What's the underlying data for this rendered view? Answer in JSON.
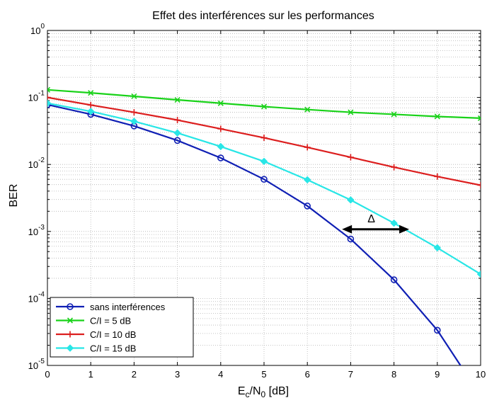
{
  "chart_data": {
    "type": "line",
    "title": "Effet des interférences sur les performances",
    "xlabel": {
      "main": "E",
      "sub1": "c",
      "mid": "/N",
      "sub2": "0",
      "tail": " [dB]"
    },
    "ylabel": "BER",
    "x": [
      0,
      1,
      2,
      3,
      4,
      5,
      6,
      7,
      8,
      9,
      10
    ],
    "xlim": [
      0,
      10
    ],
    "ylim": [
      1e-05,
      1
    ],
    "yscale": "log",
    "grid": true,
    "legend_position": "bottom-left",
    "x_ticks": [
      "0",
      "1",
      "2",
      "3",
      "4",
      "5",
      "6",
      "7",
      "8",
      "9",
      "10"
    ],
    "y_ticks": [
      {
        "base": "10",
        "exp": "0",
        "value": 1
      },
      {
        "base": "10",
        "exp": "-1",
        "value": 0.1
      },
      {
        "base": "10",
        "exp": "-2",
        "value": 0.01
      },
      {
        "base": "10",
        "exp": "-3",
        "value": 0.001
      },
      {
        "base": "10",
        "exp": "-4",
        "value": 0.0001
      },
      {
        "base": "10",
        "exp": "-5",
        "value": 1e-05
      }
    ],
    "series": [
      {
        "name": "sans interférences",
        "color": "#0f1fb4",
        "marker": "circle",
        "values": [
          0.078,
          0.056,
          0.0375,
          0.0228,
          0.0125,
          0.006,
          0.0024,
          0.00077,
          0.00019,
          3.35e-05,
          3.5e-06
        ]
      },
      {
        "name": "C/I = 5 dB",
        "color": "#19d219",
        "marker": "x",
        "values": [
          0.13,
          0.117,
          0.104,
          0.092,
          0.082,
          0.073,
          0.066,
          0.06,
          0.056,
          0.052,
          0.049
        ]
      },
      {
        "name": "C/I = 10 dB",
        "color": "#dc1e1e",
        "marker": "plus",
        "values": [
          0.1,
          0.077,
          0.06,
          0.046,
          0.034,
          0.025,
          0.018,
          0.0128,
          0.0091,
          0.0066,
          0.0049
        ]
      },
      {
        "name": "C/I = 15 dB",
        "color": "#28e6e6",
        "marker": "diamond",
        "values": [
          0.082,
          0.062,
          0.044,
          0.0295,
          0.0185,
          0.0111,
          0.0059,
          0.00295,
          0.00133,
          0.00057,
          0.00023
        ]
      }
    ],
    "annotation": {
      "label": "Δ",
      "y": 0.001,
      "x_from": 6.8,
      "x_to": 8.35,
      "color": "#000000"
    }
  }
}
